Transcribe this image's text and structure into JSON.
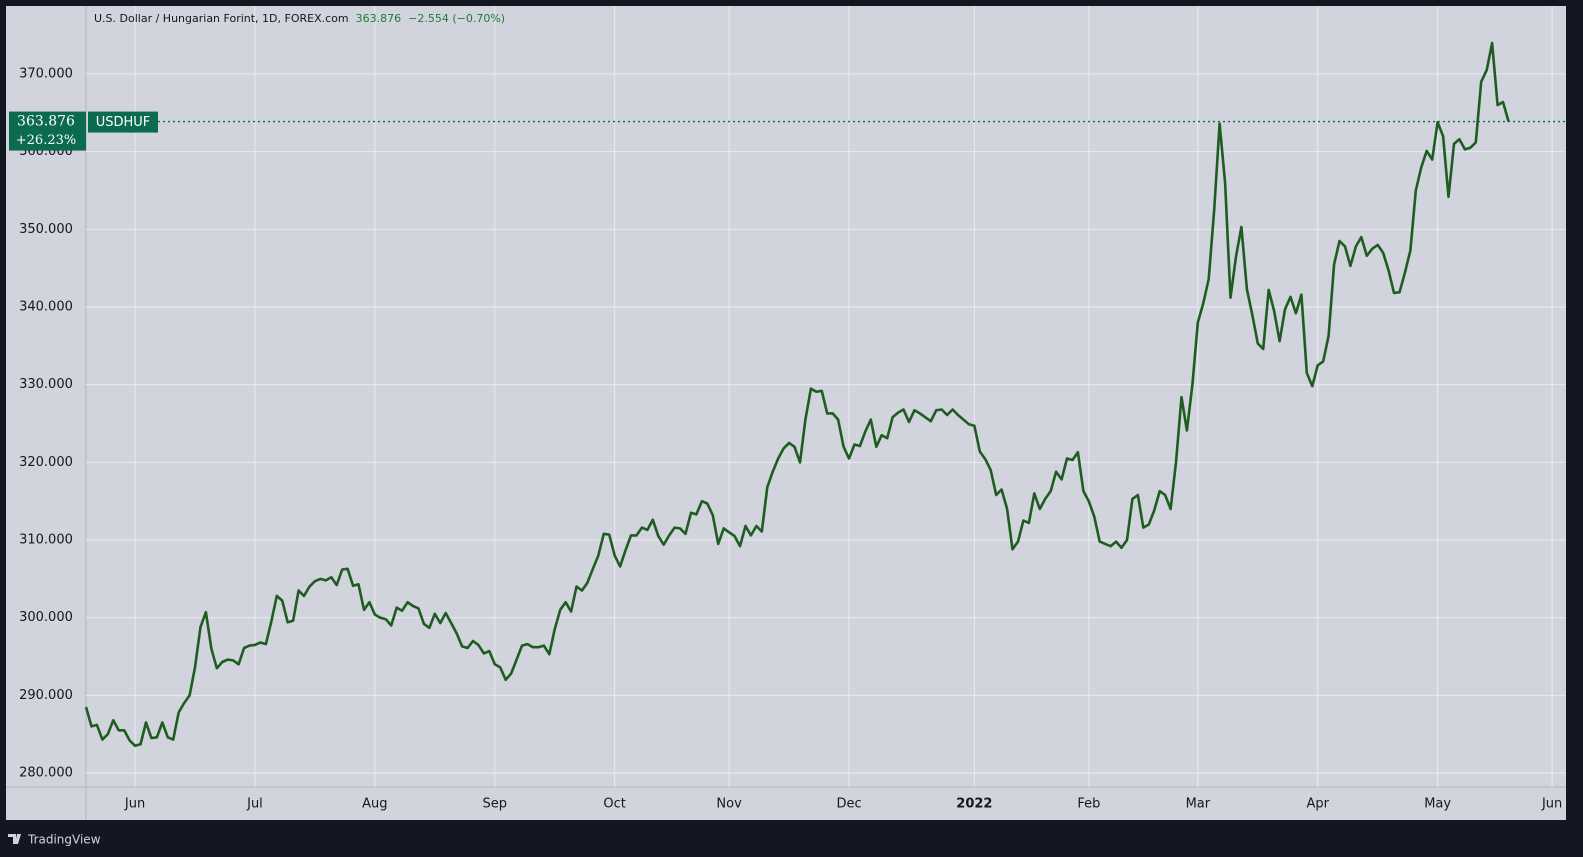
{
  "chart_data": {
    "type": "line",
    "title": "U.S. Dollar / Hungarian Forint, 1D, FOREX.com",
    "header_price": "363.876",
    "header_change": "−2.554 (−0.70%)",
    "brand": "TradingView",
    "price_line": {
      "value": 363.876,
      "label": "363.876",
      "change": "+26.23%",
      "symbol": "USDHUF"
    },
    "color": "#1f5c22",
    "grid": true,
    "ylim": [
      278.2,
      378.5
    ],
    "yticks": [
      {
        "value": 280,
        "label": "280.000"
      },
      {
        "value": 290,
        "label": "290.000"
      },
      {
        "value": 300,
        "label": "300.000"
      },
      {
        "value": 310,
        "label": "310.000"
      },
      {
        "value": 320,
        "label": "320.000"
      },
      {
        "value": 330,
        "label": "330.000"
      },
      {
        "value": 340,
        "label": "340.000"
      },
      {
        "value": 350,
        "label": "350.000"
      },
      {
        "value": 360,
        "label": "360.000"
      },
      {
        "value": 370,
        "label": "370.000"
      }
    ],
    "xlim": [
      0,
      271
    ],
    "xticks": [
      {
        "value": 9,
        "label": "Jun"
      },
      {
        "value": 31,
        "label": "Jul"
      },
      {
        "value": 53,
        "label": "Aug"
      },
      {
        "value": 75,
        "label": "Sep"
      },
      {
        "value": 97,
        "label": "Oct"
      },
      {
        "value": 118,
        "label": "Nov"
      },
      {
        "value": 140,
        "label": "Dec"
      },
      {
        "value": 163,
        "label": "2022"
      },
      {
        "value": 184,
        "label": "Feb"
      },
      {
        "value": 204,
        "label": "Mar"
      },
      {
        "value": 226,
        "label": "Apr"
      },
      {
        "value": 248,
        "label": "May"
      },
      {
        "value": 269,
        "label": "Jun"
      }
    ],
    "values": [
      288.5,
      286,
      286.2,
      284.3,
      285,
      286.8,
      285.5,
      285.5,
      284.2,
      283.5,
      283.7,
      286.5,
      284.5,
      284.6,
      286.5,
      284.6,
      284.3,
      287.8,
      289,
      290,
      293.6,
      298.8,
      300.7,
      296,
      293.5,
      294.3,
      294.6,
      294.5,
      294,
      296.1,
      296.4,
      296.5,
      296.8,
      296.6,
      299.5,
      302.8,
      302.2,
      299.4,
      299.6,
      303.5,
      302.8,
      304,
      304.7,
      305,
      304.8,
      305.2,
      304.2,
      306.2,
      306.3,
      304.1,
      304.3,
      301,
      302,
      300.4,
      300,
      299.8,
      299,
      301.3,
      300.9,
      302,
      301.5,
      301.2,
      299.2,
      298.7,
      300.5,
      299.3,
      300.6,
      299.3,
      298,
      296.3,
      296.1,
      297,
      296.5,
      295.4,
      295.7,
      294,
      293.6,
      292,
      292.8,
      294.6,
      296.4,
      296.6,
      296.2,
      296.2,
      296.4,
      295.3,
      298.5,
      301,
      302,
      300.8,
      304,
      303.5,
      304.5,
      306.3,
      308,
      310.8,
      310.7,
      308,
      306.6,
      308.7,
      310.6,
      310.6,
      311.6,
      311.3,
      312.6,
      310.5,
      309.4,
      310.6,
      311.6,
      311.5,
      310.8,
      313.5,
      313.3,
      315,
      314.7,
      313.2,
      309.5,
      311.5,
      311,
      310.5,
      309.2,
      311.8,
      310.6,
      311.8,
      311.1,
      316.8,
      318.8,
      320.5,
      321.8,
      322.5,
      322,
      320,
      325.5,
      329.5,
      329.1,
      329.2,
      326.3,
      326.3,
      325.5,
      322,
      320.5,
      322.3,
      322.1,
      324,
      325.5,
      322,
      323.5,
      323.1,
      325.8,
      326.4,
      326.8,
      325.2,
      326.7,
      326.3,
      325.8,
      325.3,
      326.7,
      326.8,
      326.1,
      326.8,
      326.1,
      325.5,
      324.9,
      324.7,
      321.4,
      320.4,
      319,
      315.8,
      316.5,
      314,
      308.8,
      309.8,
      312.5,
      312.2,
      316,
      314,
      315.3,
      316.3,
      318.8,
      317.8,
      320.5,
      320.3,
      321.3,
      316.3,
      315,
      313,
      309.8,
      309.5,
      309.2,
      309.8,
      309,
      310,
      315.3,
      315.8,
      311.6,
      312,
      313.8,
      316.3,
      315.8,
      314,
      320,
      328.4,
      324.1,
      330,
      338,
      340.5,
      343.6,
      352.5,
      363.6,
      356,
      341.2,
      346.5,
      350.3,
      342.3,
      339,
      335.3,
      334.6,
      342.2,
      339.5,
      335.6,
      339.7,
      341.3,
      339.2,
      341.6,
      331.5,
      329.8,
      332.5,
      333,
      336.3,
      345.5,
      348.5,
      347.8,
      345.3,
      347.8,
      349,
      346.6,
      347.5,
      348,
      347,
      344.7,
      341.8,
      341.9,
      344.4,
      347.3,
      355,
      358,
      360.1,
      359,
      363.8,
      362,
      354.2,
      361,
      361.6,
      360.3,
      360.5,
      361.2,
      369,
      370.5,
      374,
      366,
      366.4,
      363.9
    ]
  }
}
